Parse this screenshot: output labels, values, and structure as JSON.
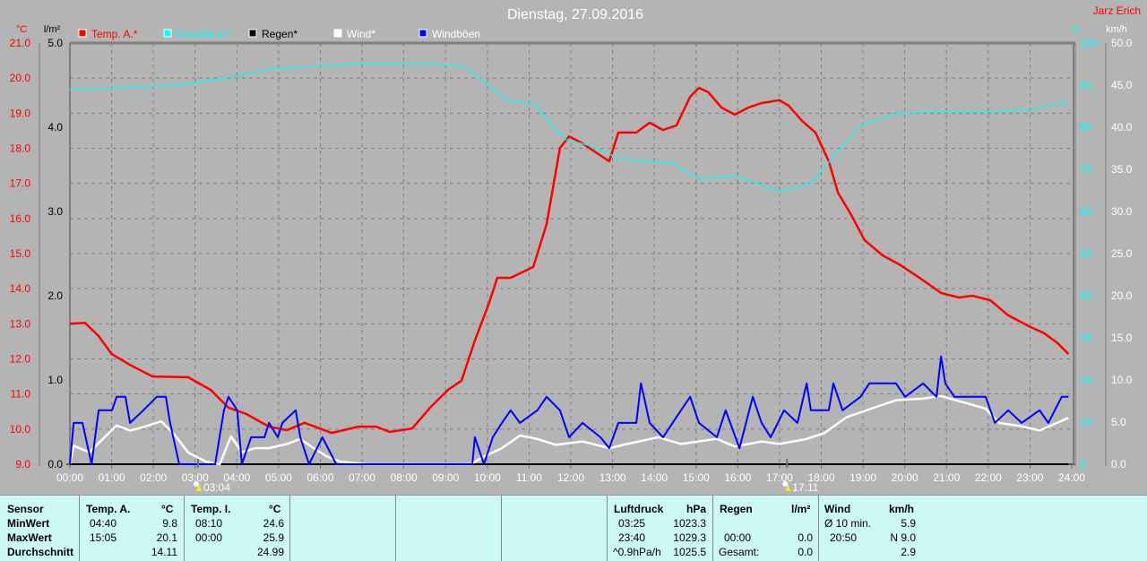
{
  "chart_data": {
    "type": "line",
    "title": "Dienstag, 27.09.2016",
    "author": "Jarz Erich",
    "xlabel": "",
    "x_ticks": [
      "00:00",
      "01:00",
      "02:00",
      "03:00",
      "04:00",
      "05:00",
      "06:00",
      "07:00",
      "08:00",
      "09:00",
      "10:00",
      "11:00",
      "12:00",
      "13:00",
      "14:00",
      "15:00",
      "16:00",
      "17:00",
      "18:00",
      "19:00",
      "20:00",
      "21:00",
      "22:00",
      "23:00",
      "24:00"
    ],
    "xlim": [
      0,
      24
    ],
    "axes": {
      "temp": {
        "unit": "°C",
        "ylim": [
          9,
          21
        ],
        "ticks": [
          "9.0",
          "10.0",
          "11.0",
          "12.0",
          "13.0",
          "14.0",
          "15.0",
          "16.0",
          "17.0",
          "18.0",
          "19.0",
          "20.0",
          "21.0"
        ],
        "color": "#ff0000"
      },
      "rain": {
        "unit": "l/m²",
        "ylim": [
          0,
          5
        ],
        "ticks": [
          "0.0",
          "1.0",
          "2.0",
          "3.0",
          "4.0",
          "5.0"
        ],
        "color": "#000000"
      },
      "humidity": {
        "unit": "%",
        "ylim": [
          0,
          100
        ],
        "ticks": [
          "0",
          "10",
          "20",
          "30",
          "40",
          "50",
          "60",
          "70",
          "80",
          "90",
          "100"
        ],
        "color": "#00ffff"
      },
      "wind": {
        "unit": "km/h",
        "ylim": [
          0,
          50
        ],
        "ticks": [
          "0.0",
          "5.0",
          "10.0",
          "15.0",
          "20.0",
          "25.0",
          "30.0",
          "35.0",
          "40.0",
          "45.0",
          "50.0"
        ],
        "color": "#ffffff"
      }
    },
    "sunrise": "03:04",
    "sunrise_h": 3.07,
    "sunset": "17:11",
    "sunset_h": 17.18,
    "grid": true,
    "legend": "top-left",
    "series": [
      {
        "name": "Temp. A.*",
        "axis": "temp",
        "color": "#ff0000",
        "points": [
          [
            0,
            13.0
          ],
          [
            0.36,
            13.03
          ],
          [
            0.69,
            12.65
          ],
          [
            1.0,
            12.14
          ],
          [
            1.44,
            11.83
          ],
          [
            1.98,
            11.5
          ],
          [
            2.83,
            11.48
          ],
          [
            3.37,
            11.12
          ],
          [
            3.8,
            10.61
          ],
          [
            4.23,
            10.43
          ],
          [
            4.77,
            10.07
          ],
          [
            5.2,
            9.97
          ],
          [
            5.62,
            10.18
          ],
          [
            6.27,
            9.89
          ],
          [
            6.91,
            10.07
          ],
          [
            7.34,
            10.07
          ],
          [
            7.66,
            9.92
          ],
          [
            8.2,
            10.02
          ],
          [
            8.63,
            10.61
          ],
          [
            9.06,
            11.12
          ],
          [
            9.38,
            11.38
          ],
          [
            9.7,
            12.52
          ],
          [
            10.03,
            13.55
          ],
          [
            10.24,
            14.31
          ],
          [
            10.56,
            14.31
          ],
          [
            11.1,
            14.62
          ],
          [
            11.42,
            15.84
          ],
          [
            11.74,
            18.01
          ],
          [
            11.96,
            18.34
          ],
          [
            12.28,
            18.14
          ],
          [
            12.92,
            17.63
          ],
          [
            13.14,
            18.45
          ],
          [
            13.57,
            18.45
          ],
          [
            13.89,
            18.73
          ],
          [
            14.21,
            18.52
          ],
          [
            14.53,
            18.65
          ],
          [
            14.86,
            19.47
          ],
          [
            15.07,
            19.72
          ],
          [
            15.29,
            19.6
          ],
          [
            15.61,
            19.16
          ],
          [
            15.93,
            18.96
          ],
          [
            16.25,
            19.16
          ],
          [
            16.57,
            19.29
          ],
          [
            17.0,
            19.37
          ],
          [
            17.22,
            19.21
          ],
          [
            17.54,
            18.78
          ],
          [
            17.86,
            18.45
          ],
          [
            18.18,
            17.63
          ],
          [
            18.4,
            16.74
          ],
          [
            18.72,
            16.1
          ],
          [
            19.04,
            15.38
          ],
          [
            19.47,
            14.95
          ],
          [
            19.9,
            14.67
          ],
          [
            20.44,
            14.24
          ],
          [
            20.87,
            13.88
          ],
          [
            21.3,
            13.75
          ],
          [
            21.62,
            13.8
          ],
          [
            22.05,
            13.67
          ],
          [
            22.48,
            13.24
          ],
          [
            23.01,
            12.91
          ],
          [
            23.34,
            12.73
          ],
          [
            23.66,
            12.45
          ],
          [
            23.92,
            12.14
          ]
        ]
      },
      {
        "name": "Feuchte A.*",
        "axis": "humidity",
        "color": "#00ffff",
        "points": [
          [
            0,
            88.9
          ],
          [
            1.55,
            89.6
          ],
          [
            2.62,
            90
          ],
          [
            3.91,
            92
          ],
          [
            4.77,
            93.8
          ],
          [
            5.62,
            94.3
          ],
          [
            6.7,
            95
          ],
          [
            8.42,
            95.3
          ],
          [
            9.49,
            94.3
          ],
          [
            10.03,
            90
          ],
          [
            10.46,
            86.4
          ],
          [
            11.1,
            85.7
          ],
          [
            11.85,
            77.2
          ],
          [
            12.49,
            75.5
          ],
          [
            13.14,
            72.6
          ],
          [
            13.78,
            71.9
          ],
          [
            14.43,
            71.5
          ],
          [
            15.07,
            67.7
          ],
          [
            15.93,
            68.5
          ],
          [
            17.0,
            64.7
          ],
          [
            17.75,
            66.6
          ],
          [
            18.29,
            73
          ],
          [
            18.94,
            80.4
          ],
          [
            19.79,
            83.2
          ],
          [
            20.87,
            83.8
          ],
          [
            21.94,
            83.6
          ],
          [
            23.01,
            84.3
          ],
          [
            23.92,
            86
          ]
        ]
      },
      {
        "name": "Regen*",
        "axis": "rain",
        "color": "#000000",
        "points": [
          [
            0,
            0
          ],
          [
            23.92,
            0
          ]
        ]
      },
      {
        "name": "Wind*",
        "axis": "wind",
        "color": "#ffffff",
        "points": [
          [
            0,
            0
          ],
          [
            0.09,
            2.2
          ],
          [
            0.47,
            1.4
          ],
          [
            0.79,
            3
          ],
          [
            1.12,
            4.6
          ],
          [
            1.44,
            4
          ],
          [
            1.76,
            4.4
          ],
          [
            2.19,
            5.1
          ],
          [
            2.51,
            3.5
          ],
          [
            2.83,
            1.4
          ],
          [
            3.26,
            0.3
          ],
          [
            3.59,
            0
          ],
          [
            3.86,
            3.3
          ],
          [
            4.12,
            1.4
          ],
          [
            4.44,
            1.9
          ],
          [
            4.77,
            1.9
          ],
          [
            5.2,
            2.4
          ],
          [
            5.52,
            3
          ],
          [
            5.84,
            1.9
          ],
          [
            6.16,
            0.9
          ],
          [
            6.48,
            0.3
          ],
          [
            7.13,
            0
          ],
          [
            9.6,
            0
          ],
          [
            9.92,
            0.9
          ],
          [
            10.35,
            1.9
          ],
          [
            10.78,
            3.4
          ],
          [
            11.2,
            3
          ],
          [
            11.64,
            2.3
          ],
          [
            12.28,
            2.7
          ],
          [
            12.92,
            1.9
          ],
          [
            13.35,
            2.4
          ],
          [
            14.1,
            3.2
          ],
          [
            14.64,
            2.4
          ],
          [
            15.5,
            3
          ],
          [
            15.93,
            2.1
          ],
          [
            16.57,
            2.7
          ],
          [
            17.0,
            2.4
          ],
          [
            17.65,
            3
          ],
          [
            18.08,
            3.7
          ],
          [
            18.61,
            5.6
          ],
          [
            19.26,
            6.7
          ],
          [
            19.79,
            7.6
          ],
          [
            20.44,
            7.8
          ],
          [
            20.87,
            8.1
          ],
          [
            21.51,
            7.2
          ],
          [
            21.94,
            6.6
          ],
          [
            22.26,
            4.9
          ],
          [
            22.8,
            4.5
          ],
          [
            23.23,
            4
          ],
          [
            23.92,
            5.5
          ]
        ]
      },
      {
        "name": "Windböen",
        "axis": "wind",
        "color": "#0000ff",
        "points": [
          [
            0,
            0
          ],
          [
            0.09,
            4.9
          ],
          [
            0.3,
            4.9
          ],
          [
            0.52,
            0
          ],
          [
            0.69,
            6.4
          ],
          [
            1.01,
            6.4
          ],
          [
            1.12,
            8
          ],
          [
            1.33,
            8
          ],
          [
            1.44,
            4.9
          ],
          [
            1.76,
            6.4
          ],
          [
            2.08,
            8
          ],
          [
            2.3,
            8
          ],
          [
            2.4,
            4.9
          ],
          [
            2.62,
            0
          ],
          [
            3.48,
            0
          ],
          [
            3.69,
            6.4
          ],
          [
            3.8,
            8
          ],
          [
            4.01,
            6.4
          ],
          [
            4.12,
            0
          ],
          [
            4.34,
            3.2
          ],
          [
            4.66,
            3.2
          ],
          [
            4.77,
            4.9
          ],
          [
            4.98,
            3.2
          ],
          [
            5.09,
            4.9
          ],
          [
            5.41,
            6.4
          ],
          [
            5.52,
            3.2
          ],
          [
            5.73,
            0
          ],
          [
            6.05,
            3.2
          ],
          [
            6.38,
            0
          ],
          [
            9.64,
            0
          ],
          [
            9.7,
            3.2
          ],
          [
            9.92,
            0
          ],
          [
            10.13,
            3.2
          ],
          [
            10.35,
            4.9
          ],
          [
            10.56,
            6.4
          ],
          [
            10.78,
            4.9
          ],
          [
            11.2,
            6.4
          ],
          [
            11.42,
            8
          ],
          [
            11.74,
            6.4
          ],
          [
            11.96,
            3.2
          ],
          [
            12.28,
            4.9
          ],
          [
            12.71,
            3.2
          ],
          [
            12.92,
            1.9
          ],
          [
            13.14,
            4.9
          ],
          [
            13.57,
            4.9
          ],
          [
            13.68,
            9.6
          ],
          [
            13.89,
            4.9
          ],
          [
            14.21,
            3.2
          ],
          [
            14.64,
            6.4
          ],
          [
            14.86,
            8
          ],
          [
            15.07,
            4.9
          ],
          [
            15.5,
            3.2
          ],
          [
            15.71,
            6.4
          ],
          [
            16.04,
            1.9
          ],
          [
            16.36,
            8
          ],
          [
            16.57,
            4.9
          ],
          [
            16.79,
            3.2
          ],
          [
            17.11,
            6.4
          ],
          [
            17.43,
            4.9
          ],
          [
            17.65,
            9.6
          ],
          [
            17.75,
            6.4
          ],
          [
            18.18,
            6.4
          ],
          [
            18.29,
            9.6
          ],
          [
            18.51,
            6.4
          ],
          [
            18.94,
            8
          ],
          [
            19.15,
            9.6
          ],
          [
            19.79,
            9.6
          ],
          [
            20.01,
            8
          ],
          [
            20.44,
            9.6
          ],
          [
            20.76,
            8
          ],
          [
            20.87,
            12.8
          ],
          [
            20.97,
            9.6
          ],
          [
            21.19,
            8
          ],
          [
            21.4,
            8
          ],
          [
            21.94,
            8
          ],
          [
            22.16,
            4.9
          ],
          [
            22.48,
            6.4
          ],
          [
            22.8,
            4.9
          ],
          [
            23.23,
            6.4
          ],
          [
            23.44,
            4.9
          ],
          [
            23.76,
            8
          ],
          [
            23.92,
            8
          ]
        ]
      }
    ]
  },
  "table": {
    "row_labels": [
      "Sensor",
      "MinWert",
      "MaxWert",
      "Durchschnitt"
    ],
    "temp_a": {
      "title": "Temp. A.",
      "unit": "°C",
      "min_time": "04:40",
      "min": "9.8",
      "max_time": "15:05",
      "max": "20.1",
      "avg": "14.11"
    },
    "temp_i": {
      "title": "Temp. I.",
      "unit": "°C",
      "min_time": "08:10",
      "min": "24.6",
      "max_time": "00:00",
      "max": "25.9",
      "avg": "24.99"
    },
    "pressure": {
      "title": "Luftdruck",
      "unit": "hPa",
      "min_time": "03:25",
      "min": "1023.3",
      "max_time": "23:40",
      "max": "1029.3",
      "trend": "^0.9hPa/h",
      "avg": "1025.5"
    },
    "rain": {
      "title": "Regen",
      "unit": "l/m²",
      "time": "00:00",
      "value": "0.0",
      "total_label": "Gesamt:",
      "total": "0.0"
    },
    "wind": {
      "title": "Wind",
      "unit": "km/h",
      "avg10_label": "Ø 10 min.",
      "avg10": "5.9",
      "max_time": "20:50",
      "max": "N 9.0",
      "avg": "2.9"
    }
  }
}
